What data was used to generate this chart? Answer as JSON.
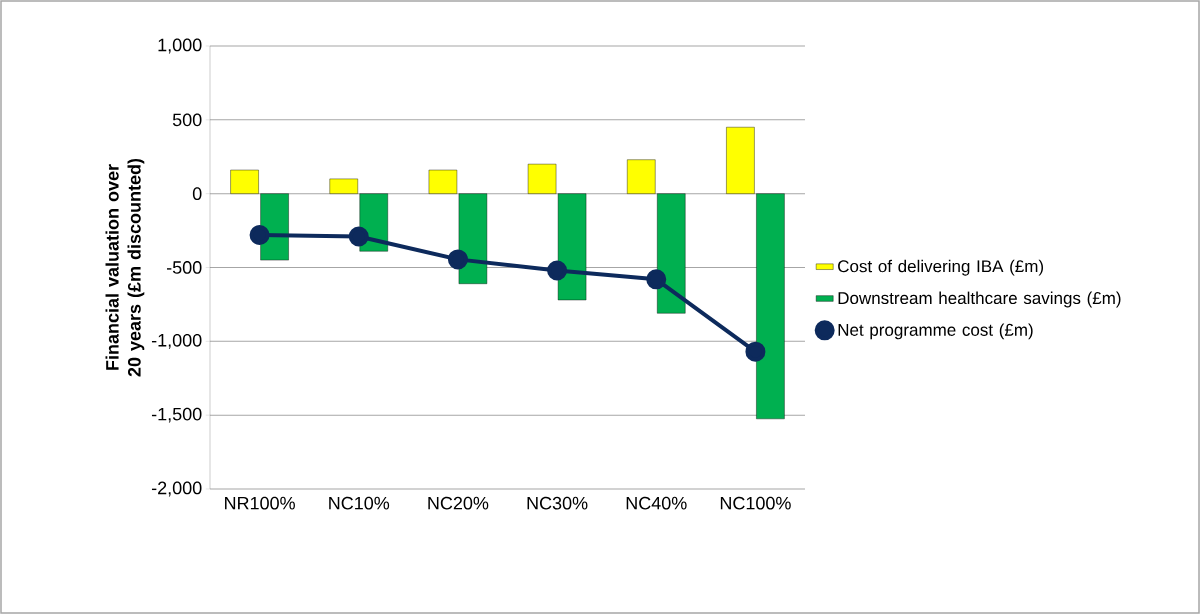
{
  "chart_data": {
    "type": "bar",
    "ylabel": "Financial valuation over 20 years (£m discounted)",
    "categories": [
      "NR100%",
      "NC10%",
      "NC20%",
      "NC30%",
      "NC40%",
      "NC100%"
    ],
    "series": [
      {
        "name": "Cost of delivering IBA (£m)",
        "color": "#ffff00",
        "values": [
          160,
          100,
          160,
          200,
          230,
          450
        ]
      },
      {
        "name": "Downstream healthcare savings (£m)",
        "color": "#00b050",
        "values": [
          -450,
          -390,
          -610,
          -720,
          -810,
          -1525
        ]
      },
      {
        "name": "Net programme cost (£m)",
        "type": "line",
        "color": "#0d2a5c",
        "values": [
          -280,
          -290,
          -445,
          -520,
          -580,
          -1070
        ]
      }
    ],
    "ylim": [
      -2000,
      1000
    ],
    "yticks": [
      {
        "value": -2000,
        "label": "-2,000"
      },
      {
        "value": -1500,
        "label": "-1,500"
      },
      {
        "value": -1000,
        "label": "-1,000"
      },
      {
        "value": -500,
        "label": "-500"
      },
      0,
      500,
      {
        "value": 1000,
        "label": "1,000"
      }
    ],
    "grid": "y",
    "legend": "right",
    "marker": "circle"
  }
}
